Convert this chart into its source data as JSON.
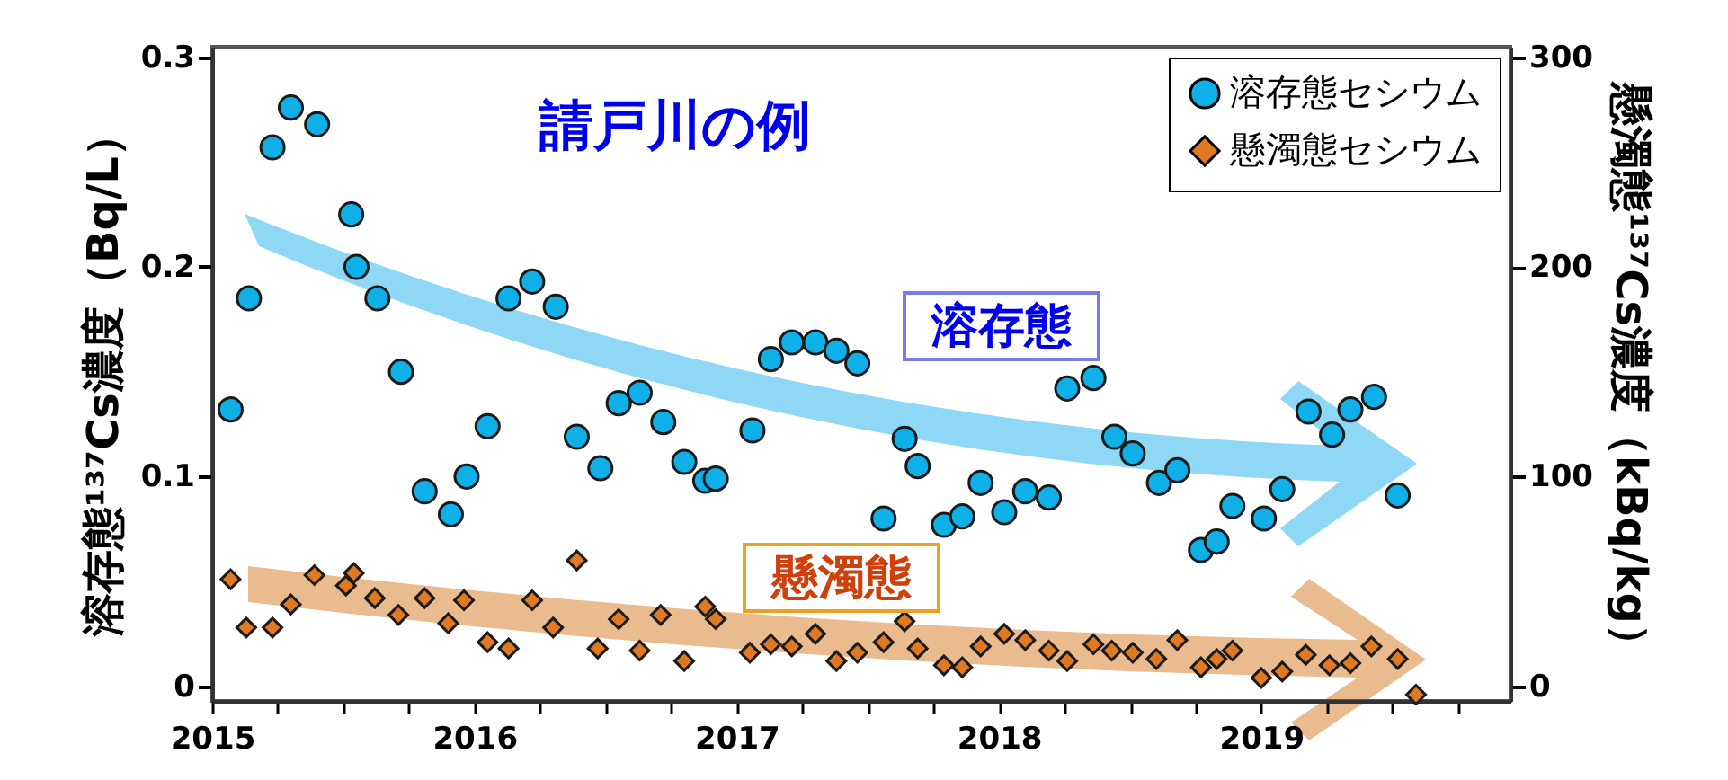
{
  "chart_data": {
    "type": "scatter",
    "title": "請戸川の例",
    "ylabel": "溶存態¹³⁷Cs濃度（Bq/L）",
    "y2label": "懸濁態¹³⁷Cs濃度（kBq/kg）",
    "annotations": [
      "溶存態",
      "懸濁態"
    ],
    "xlim": [
      2015,
      2019.95
    ],
    "xticks": [
      2015,
      {
        "value": 2015.25,
        "label": null
      },
      {
        "value": 2015.5,
        "label": null
      },
      {
        "value": 2015.75,
        "label": null
      },
      2016,
      {
        "value": 2016.25,
        "label": null
      },
      {
        "value": 2016.5,
        "label": null
      },
      {
        "value": 2016.75,
        "label": null
      },
      2017,
      {
        "value": 2017.25,
        "label": null
      },
      {
        "value": 2017.5,
        "label": null
      },
      {
        "value": 2017.75,
        "label": null
      },
      2018,
      {
        "value": 2018.25,
        "label": null
      },
      {
        "value": 2018.5,
        "label": null
      },
      {
        "value": 2018.75,
        "label": null
      },
      2019,
      {
        "value": 2019.25,
        "label": null
      },
      {
        "value": 2019.5,
        "label": null
      },
      {
        "value": 2019.75,
        "label": null
      }
    ],
    "ylim": [
      -0.007,
      0.305
    ],
    "yticks": [
      0,
      0.1,
      0.2,
      0.3
    ],
    "y2lim": [
      -7,
      305
    ],
    "y2ticks": [
      0,
      100,
      200,
      300
    ],
    "legend": "top right",
    "grid": false,
    "series": [
      {
        "name": "溶存態セシウム",
        "color": "#0fb0e8",
        "marker": "circle",
        "x": [
          2015.07,
          2015.14,
          2015.23,
          2015.3,
          2015.4,
          2015.53,
          2015.55,
          2015.63,
          2015.72,
          2015.81,
          2015.91,
          2015.97,
          2016.05,
          2016.13,
          2016.22,
          2016.31,
          2016.39,
          2016.48,
          2016.55,
          2016.63,
          2016.72,
          2016.8,
          2016.88,
          2016.92,
          2017.06,
          2017.13,
          2017.21,
          2017.3,
          2017.38,
          2017.46,
          2017.56,
          2017.64,
          2017.69,
          2017.79,
          2017.86,
          2017.93,
          2018.02,
          2018.1,
          2018.19,
          2018.26,
          2018.36,
          2018.44,
          2018.51,
          2018.61,
          2018.68,
          2018.77,
          2018.83,
          2018.89,
          2019.01,
          2019.08,
          2019.18,
          2019.27,
          2019.34,
          2019.43,
          2019.52
        ],
        "values": [
          0.132,
          0.185,
          0.257,
          0.276,
          0.268,
          0.225,
          0.2,
          0.185,
          0.15,
          0.093,
          0.082,
          0.1,
          0.124,
          0.185,
          0.193,
          0.181,
          0.119,
          0.104,
          0.135,
          0.14,
          0.126,
          0.107,
          0.098,
          0.099,
          0.122,
          0.156,
          0.164,
          0.164,
          0.16,
          0.154,
          0.08,
          0.118,
          0.105,
          0.077,
          0.081,
          0.097,
          0.083,
          0.093,
          0.09,
          0.142,
          0.147,
          0.119,
          0.111,
          0.097,
          0.103,
          0.065,
          0.069,
          0.086,
          0.08,
          0.094,
          0.131,
          0.12,
          0.132,
          0.138,
          0.091
        ]
      },
      {
        "name": "懸濁態セシウム",
        "color": "#e07a22",
        "marker": "diamond",
        "axis": "y2",
        "x": [
          2015.07,
          2015.13,
          2015.23,
          2015.3,
          2015.39,
          2015.51,
          2015.54,
          2015.62,
          2015.71,
          2015.81,
          2015.9,
          2015.96,
          2016.05,
          2016.13,
          2016.22,
          2016.3,
          2016.39,
          2016.47,
          2016.55,
          2016.63,
          2016.71,
          2016.8,
          2016.88,
          2016.92,
          2017.05,
          2017.13,
          2017.21,
          2017.3,
          2017.38,
          2017.46,
          2017.56,
          2017.64,
          2017.69,
          2017.79,
          2017.86,
          2017.93,
          2018.02,
          2018.1,
          2018.19,
          2018.26,
          2018.36,
          2018.43,
          2018.51,
          2018.6,
          2018.68,
          2018.77,
          2018.83,
          2018.89,
          2019.0,
          2019.08,
          2019.17,
          2019.26,
          2019.34,
          2019.42,
          2019.52,
          2019.59
        ],
        "values": [
          51,
          28,
          28,
          39,
          53,
          48,
          54,
          42,
          34,
          42,
          30,
          41,
          21,
          18,
          41,
          28,
          60,
          18,
          32,
          17,
          34,
          12,
          38,
          32,
          16,
          20,
          19,
          25,
          12,
          16,
          21,
          31,
          18,
          10,
          9,
          19,
          25,
          22,
          17,
          12,
          20,
          17,
          16,
          13,
          22,
          9,
          13,
          17,
          4,
          7,
          15,
          10,
          11,
          19,
          13,
          -4
        ]
      }
    ]
  }
}
